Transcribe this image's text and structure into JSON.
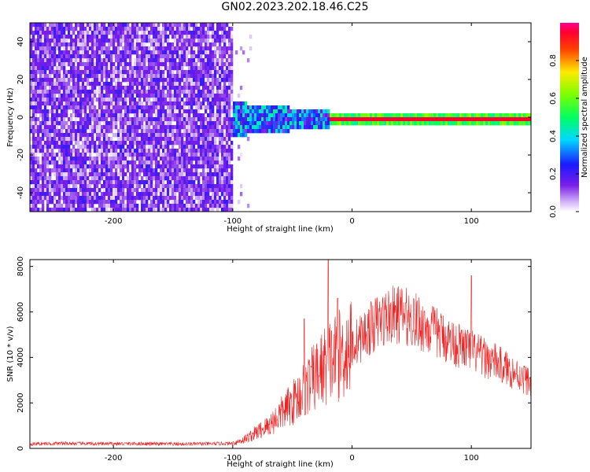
{
  "title": "GN02.2023.202.18.46.C25",
  "chart_data": [
    {
      "type": "heatmap",
      "xlabel": "Height of straight line (km)",
      "ylabel": "Frequency (Hz)",
      "xlim": [
        -270,
        150
      ],
      "ylim": [
        -50,
        50
      ],
      "xticks": [
        -200,
        -100,
        0,
        100
      ],
      "yticks": [
        -40,
        -20,
        0,
        20,
        40
      ],
      "colorbar": {
        "label": "Normalized spectral amplitude",
        "range": [
          0,
          1
        ],
        "ticks": [
          "0.0",
          "0.2",
          "0.4",
          "0.6",
          "0.8"
        ],
        "colormap": "rainbow (white/violet → blue → cyan → green → yellow → red → magenta)"
      },
      "regions": [
        {
          "x_range": [
            -270,
            -100
          ],
          "description": "broadband noise, amplitude ~0.05–0.25 (violet/white)"
        },
        {
          "x_range": [
            -100,
            -20
          ],
          "description": "signal emerging near 0 Hz, spread about ±8 Hz, amplitude ~0.2–0.5"
        },
        {
          "x_range": [
            -20,
            150
          ],
          "description": "narrow tone at 0 Hz, peak amplitude ~1.0"
        }
      ]
    },
    {
      "type": "line",
      "xlabel": "Height of straight line (km)",
      "ylabel": "SNR (10 * v/v)",
      "xlim": [
        -270,
        150
      ],
      "ylim": [
        0,
        8300
      ],
      "xticks": [
        -200,
        -100,
        0,
        100
      ],
      "yticks": [
        0,
        2000,
        4000,
        6000,
        8000
      ],
      "color": "#ee2222",
      "series": [
        {
          "x": [
            -270,
            -240,
            -210,
            -180,
            -150,
            -120,
            -100,
            -90,
            -80,
            -70,
            -60,
            -50,
            -40,
            -30,
            -20,
            -10,
            0,
            10,
            20,
            30,
            40,
            50,
            60,
            70,
            80,
            90,
            100,
            110,
            120,
            130,
            140,
            150
          ],
          "values": [
            200,
            220,
            200,
            210,
            190,
            200,
            220,
            400,
            700,
            1000,
            1500,
            2000,
            2600,
            3200,
            3800,
            4100,
            4500,
            5000,
            5500,
            5800,
            5900,
            5700,
            5400,
            5100,
            4800,
            4500,
            4300,
            4000,
            3800,
            3500,
            3200,
            2900
          ],
          "spikes": [
            [
              -20,
              8300
            ],
            [
              -12,
              6600
            ],
            [
              -40,
              5700
            ],
            [
              100,
              7600
            ],
            [
              45,
              6400
            ]
          ]
        }
      ]
    }
  ]
}
